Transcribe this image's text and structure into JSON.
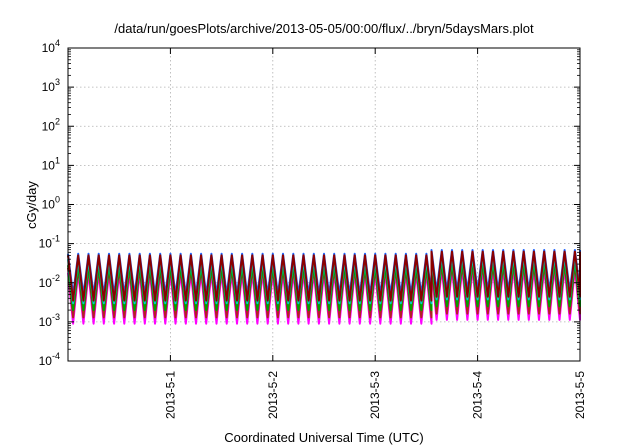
{
  "chart_data": {
    "type": "line",
    "title": "/data/run/goesPlots/archive/2013-05-05/00:00/flux/../bryn/5daysMars.plot",
    "xlabel": "Coordinated Universal Time (UTC)",
    "ylabel": "cGy/day",
    "yscale": "log",
    "ylim": [
      0.0001,
      10000
    ],
    "xlim": [
      0,
      5.0
    ],
    "grid": true,
    "y_ticks": [
      {
        "value": 0.0001,
        "mantissa": "10",
        "exp": "-4"
      },
      {
        "value": 0.001,
        "mantissa": "10",
        "exp": "-3"
      },
      {
        "value": 0.01,
        "mantissa": "10",
        "exp": "-2"
      },
      {
        "value": 0.1,
        "mantissa": "10",
        "exp": "-1"
      },
      {
        "value": 1,
        "mantissa": "10",
        "exp": "0"
      },
      {
        "value": 10,
        "mantissa": "10",
        "exp": "1"
      },
      {
        "value": 100,
        "mantissa": "10",
        "exp": "2"
      },
      {
        "value": 1000,
        "mantissa": "10",
        "exp": "3"
      },
      {
        "value": 10000,
        "mantissa": "10",
        "exp": "4"
      }
    ],
    "x_ticks": [
      {
        "value": 1,
        "label": "2013-5-1"
      },
      {
        "value": 2,
        "label": "2013-5-2"
      },
      {
        "value": 3,
        "label": "2013-5-3"
      },
      {
        "value": 4,
        "label": "2013-5-4"
      },
      {
        "value": 5,
        "label": "2013-5-5"
      }
    ],
    "sawtooth": {
      "cycles_per_day": 10,
      "segments": [
        {
          "start": 0,
          "end": 3.55,
          "peak_scale": 1.0
        },
        {
          "start": 3.55,
          "end": 5.0,
          "peak_scale": 1.25
        }
      ]
    },
    "series": [
      {
        "color": "#ff00ff",
        "peak": 0.018,
        "trough": 0.0009
      },
      {
        "color": "#b22222",
        "peak": 0.024,
        "trough": 0.0013
      },
      {
        "color": "#00a000",
        "peak": 0.028,
        "trough": 0.002
      },
      {
        "color": "#00c8c8",
        "peak": 0.04,
        "trough": 0.003
      },
      {
        "color": "#1e64ff",
        "peak": 0.055,
        "trough": 0.005
      },
      {
        "color": "#8b0000",
        "peak": 0.05,
        "trough": 0.0035
      }
    ]
  }
}
